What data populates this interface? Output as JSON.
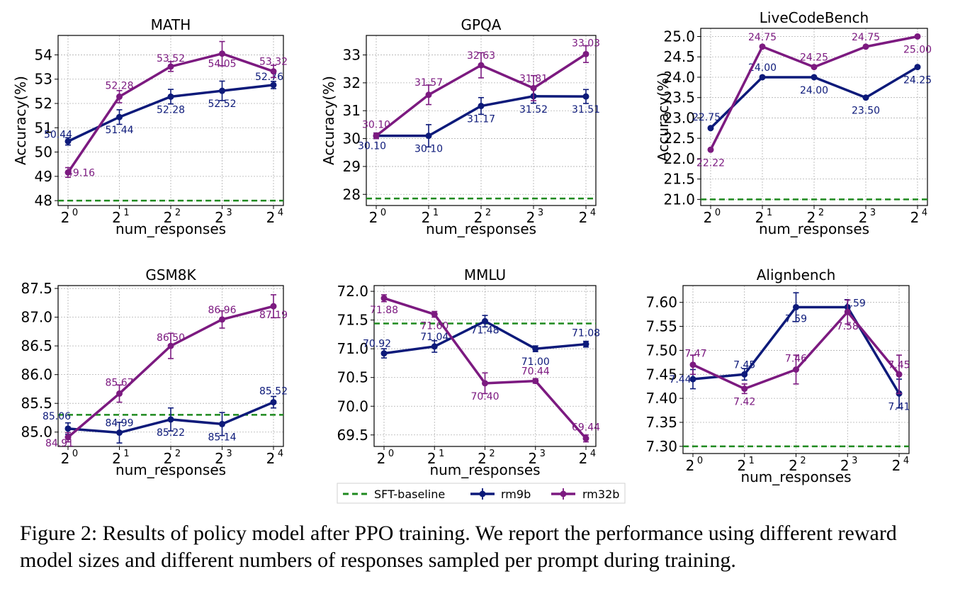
{
  "caption": "Figure 2: Results of policy model after PPO training. We report the performance using different reward model sizes and different numbers of responses sampled per prompt during training.",
  "legend": {
    "baseline": "SFT-baseline",
    "series": [
      "rm9b",
      "rm32b"
    ]
  },
  "colors": {
    "rm9b": "#0d1a7a",
    "rm32b": "#7c1a80",
    "baseline": "#1f8a1f",
    "grid": "#b0b0b0"
  },
  "chart_data": [
    {
      "type": "line",
      "title": "MATH",
      "xlabel": "num_responses",
      "ylabel": "Accuracy(%)",
      "x_ticks": [
        {
          "base": "2",
          "exp": "0"
        },
        {
          "base": "2",
          "exp": "1"
        },
        {
          "base": "2",
          "exp": "2"
        },
        {
          "base": "2",
          "exp": "3"
        },
        {
          "base": "2",
          "exp": "4"
        }
      ],
      "x": [
        1,
        2,
        4,
        8,
        16
      ],
      "y_ticks": [
        48,
        49,
        50,
        51,
        52,
        53,
        54
      ],
      "ylim": [
        47.8,
        54.8
      ],
      "baseline": 48.0,
      "series": [
        {
          "name": "rm9b",
          "values": [
            50.44,
            51.44,
            52.28,
            52.52,
            52.76
          ],
          "err": [
            0.15,
            0.3,
            0.3,
            0.4,
            0.15
          ],
          "labels": [
            "50.44",
            "51.44",
            "52.28",
            "52.52",
            "52.76"
          ]
        },
        {
          "name": "rm32b",
          "values": [
            49.16,
            52.28,
            53.52,
            54.05,
            53.32
          ],
          "err": [
            0.2,
            0.25,
            0.2,
            0.5,
            0.25
          ],
          "labels": [
            "49.16",
            "52.28",
            "53.52",
            "54.05",
            "53.32"
          ]
        }
      ]
    },
    {
      "type": "line",
      "title": "GPQA",
      "xlabel": "num_responses",
      "ylabel": "Accuracy(%)",
      "x_ticks": [
        {
          "base": "2",
          "exp": "0"
        },
        {
          "base": "2",
          "exp": "1"
        },
        {
          "base": "2",
          "exp": "2"
        },
        {
          "base": "2",
          "exp": "3"
        },
        {
          "base": "2",
          "exp": "4"
        }
      ],
      "x": [
        1,
        2,
        4,
        8,
        16
      ],
      "y_ticks": [
        28,
        29,
        30,
        31,
        32,
        33
      ],
      "ylim": [
        27.6,
        33.7
      ],
      "baseline": 27.85,
      "series": [
        {
          "name": "rm9b",
          "values": [
            30.1,
            30.1,
            31.17,
            31.52,
            31.51
          ],
          "err": [
            0.1,
            0.4,
            0.3,
            0.25,
            0.25
          ],
          "labels": [
            "30.10",
            "30.10",
            "31.17",
            "31.52",
            "31.51"
          ]
        },
        {
          "name": "rm32b",
          "values": [
            30.1,
            31.57,
            32.63,
            31.81,
            33.03
          ],
          "err": [
            0.1,
            0.35,
            0.45,
            0.45,
            0.3
          ],
          "labels": [
            "30.10",
            "31.57",
            "32.63",
            "31.81",
            "33.03"
          ]
        }
      ]
    },
    {
      "type": "line",
      "title": "LiveCodeBench",
      "xlabel": "num_responses",
      "ylabel": "Accuracy(%)",
      "x_ticks": [
        {
          "base": "2",
          "exp": "0"
        },
        {
          "base": "2",
          "exp": "1"
        },
        {
          "base": "2",
          "exp": "2"
        },
        {
          "base": "2",
          "exp": "3"
        },
        {
          "base": "2",
          "exp": "4"
        }
      ],
      "x": [
        1,
        2,
        4,
        8,
        16
      ],
      "y_ticks": [
        21.0,
        21.5,
        22.0,
        22.5,
        23.0,
        23.5,
        24.0,
        24.5,
        25.0
      ],
      "ylim": [
        20.85,
        25.2
      ],
      "baseline": 21.0,
      "series": [
        {
          "name": "rm9b",
          "values": [
            22.75,
            24.0,
            24.0,
            23.5,
            24.25
          ],
          "err": [
            0,
            0,
            0,
            0,
            0
          ],
          "labels": [
            "22.75",
            "24.00",
            "24.00",
            "23.50",
            "24.25"
          ]
        },
        {
          "name": "rm32b",
          "values": [
            22.22,
            24.75,
            24.25,
            24.75,
            25.0
          ],
          "err": [
            0,
            0,
            0,
            0,
            0
          ],
          "labels": [
            "22.22",
            "24.75",
            "24.25",
            "24.75",
            "25.00"
          ]
        }
      ]
    },
    {
      "type": "line",
      "title": "GSM8K",
      "xlabel": "num_responses",
      "ylabel": "",
      "x_ticks": [
        {
          "base": "2",
          "exp": "0"
        },
        {
          "base": "2",
          "exp": "1"
        },
        {
          "base": "2",
          "exp": "2"
        },
        {
          "base": "2",
          "exp": "3"
        },
        {
          "base": "2",
          "exp": "4"
        }
      ],
      "x": [
        1,
        2,
        4,
        8,
        16
      ],
      "y_ticks": [
        85.0,
        85.5,
        86.0,
        86.5,
        87.0,
        87.5
      ],
      "ylim": [
        84.75,
        87.55
      ],
      "baseline": 85.3,
      "series": [
        {
          "name": "rm9b",
          "values": [
            85.06,
            84.99,
            85.22,
            85.14,
            85.52
          ],
          "err": [
            0.1,
            0.18,
            0.2,
            0.2,
            0.1
          ],
          "labels": [
            "85.06",
            "84.99",
            "85.22",
            "85.14",
            "85.52"
          ]
        },
        {
          "name": "rm32b",
          "values": [
            84.91,
            85.67,
            86.5,
            86.96,
            87.19
          ],
          "err": [
            0.08,
            0.15,
            0.22,
            0.15,
            0.2
          ],
          "labels": [
            "84.91",
            "85.67",
            "86.50",
            "86.96",
            "87.19"
          ]
        }
      ]
    },
    {
      "type": "line",
      "title": "MMLU",
      "xlabel": "num_responses",
      "ylabel": "",
      "x_ticks": [
        {
          "base": "2",
          "exp": "0"
        },
        {
          "base": "2",
          "exp": "1"
        },
        {
          "base": "2",
          "exp": "2"
        },
        {
          "base": "2",
          "exp": "3"
        },
        {
          "base": "2",
          "exp": "4"
        }
      ],
      "x": [
        1,
        2,
        4,
        8,
        16
      ],
      "y_ticks": [
        69.5,
        70.0,
        70.5,
        71.0,
        71.5,
        72.0
      ],
      "ylim": [
        69.3,
        72.1
      ],
      "baseline": 71.44,
      "series": [
        {
          "name": "rm9b",
          "values": [
            70.92,
            71.04,
            71.48,
            71.0,
            71.08
          ],
          "err": [
            0.08,
            0.1,
            0.1,
            0.05,
            0.05
          ],
          "labels": [
            "70.92",
            "71.04",
            "71.48",
            "71.00",
            "71.08"
          ]
        },
        {
          "name": "rm32b",
          "values": [
            71.88,
            71.6,
            70.4,
            70.44,
            69.44
          ],
          "err": [
            0.06,
            0.05,
            0.18,
            0.04,
            0.06
          ],
          "labels": [
            "71.88",
            "71.60",
            "70.40",
            "70.44",
            "69.44"
          ]
        }
      ]
    },
    {
      "type": "line",
      "title": "Alignbench",
      "xlabel": "num_responses",
      "ylabel": "",
      "x_ticks": [
        {
          "base": "2",
          "exp": "0"
        },
        {
          "base": "2",
          "exp": "1"
        },
        {
          "base": "2",
          "exp": "2"
        },
        {
          "base": "2",
          "exp": "3"
        },
        {
          "base": "2",
          "exp": "4"
        }
      ],
      "x": [
        1,
        2,
        4,
        8,
        16
      ],
      "y_ticks": [
        7.3,
        7.35,
        7.4,
        7.45,
        7.5,
        7.55,
        7.6
      ],
      "ylim": [
        7.285,
        7.635
      ],
      "baseline": 7.3,
      "series": [
        {
          "name": "rm9b",
          "values": [
            7.44,
            7.45,
            7.59,
            7.59,
            7.41
          ],
          "err": [
            0.02,
            0.012,
            0.03,
            0.015,
            0.03
          ],
          "labels": [
            "7.44",
            "7.45",
            "7.59",
            "7.59",
            "7.41"
          ]
        },
        {
          "name": "rm32b",
          "values": [
            7.47,
            7.42,
            7.46,
            7.58,
            7.45
          ],
          "err": [
            0.02,
            0.01,
            0.03,
            0.025,
            0.04
          ],
          "labels": [
            "7.47",
            "7.42",
            "7.46",
            "7.58",
            "7.45"
          ]
        }
      ]
    }
  ]
}
